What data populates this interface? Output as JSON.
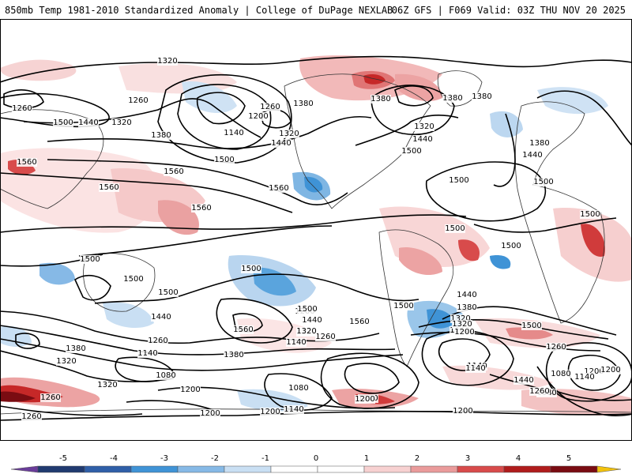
{
  "header": {
    "title": "850mb Temp 1981-2010 Standardized Anomaly | College of DuPage NEXLAB",
    "run_info": "06Z GFS | F069 Valid: 03Z THU NOV 20 2025"
  },
  "colorbar": {
    "ticks": [
      "-5",
      "-4",
      "-3",
      "-2",
      "-1",
      "0",
      "1",
      "2",
      "3",
      "4",
      "5"
    ],
    "colors": [
      "#6a3d9a",
      "#203a70",
      "#2f5fa8",
      "#3f93d6",
      "#86b9e6",
      "#c9dff3",
      "#ffffff",
      "#ffffff",
      "#f7d1d1",
      "#ea9b9b",
      "#d84b4b",
      "#b01c1c",
      "#7a0c12",
      "#f2c20d"
    ]
  },
  "map": {
    "contour_labels": [
      {
        "id": "c1",
        "text": "1320"
      },
      {
        "id": "c2",
        "text": "1260"
      },
      {
        "id": "c3",
        "text": "1260"
      },
      {
        "id": "c4",
        "text": "1500"
      },
      {
        "id": "c5",
        "text": "1440"
      },
      {
        "id": "c6",
        "text": "1320"
      },
      {
        "id": "c7",
        "text": "1200"
      },
      {
        "id": "c8",
        "text": "1140"
      },
      {
        "id": "c9",
        "text": "1260"
      },
      {
        "id": "c10",
        "text": "1380"
      },
      {
        "id": "c11",
        "text": "1320"
      },
      {
        "id": "c12",
        "text": "1440"
      },
      {
        "id": "c13",
        "text": "1380"
      },
      {
        "id": "c14",
        "text": "1380"
      },
      {
        "id": "c15",
        "text": "1380"
      },
      {
        "id": "c16",
        "text": "1380"
      },
      {
        "id": "c17",
        "text": "1320"
      },
      {
        "id": "c18",
        "text": "1440"
      },
      {
        "id": "c19",
        "text": "1500"
      },
      {
        "id": "c20",
        "text": "1380"
      },
      {
        "id": "c21",
        "text": "1440"
      },
      {
        "id": "c22",
        "text": "1560"
      },
      {
        "id": "c23",
        "text": "1560"
      },
      {
        "id": "c24",
        "text": "1500"
      },
      {
        "id": "c25",
        "text": "1560"
      },
      {
        "id": "c26",
        "text": "1560"
      },
      {
        "id": "c27",
        "text": "1500"
      },
      {
        "id": "c28",
        "text": "1500"
      },
      {
        "id": "c29",
        "text": "1560"
      },
      {
        "id": "c30",
        "text": "1500"
      },
      {
        "id": "c31",
        "text": "1500"
      },
      {
        "id": "c32",
        "text": "1500"
      },
      {
        "id": "c33",
        "text": "1500"
      },
      {
        "id": "c34",
        "text": "1500"
      },
      {
        "id": "c35",
        "text": "1500"
      },
      {
        "id": "c36",
        "text": "1500"
      },
      {
        "id": "c37",
        "text": "1440"
      },
      {
        "id": "c38",
        "text": "1380"
      },
      {
        "id": "c39",
        "text": "1320"
      },
      {
        "id": "c40",
        "text": "1260"
      },
      {
        "id": "c41",
        "text": "1200"
      },
      {
        "id": "c42",
        "text": "1140"
      },
      {
        "id": "c43",
        "text": "1440"
      },
      {
        "id": "c44",
        "text": "1560"
      },
      {
        "id": "c45",
        "text": "1380"
      },
      {
        "id": "c46",
        "text": "1260"
      },
      {
        "id": "c47",
        "text": "1140"
      },
      {
        "id": "c48",
        "text": "1200"
      },
      {
        "id": "c49",
        "text": "1080"
      },
      {
        "id": "c50",
        "text": "1320"
      },
      {
        "id": "c51",
        "text": "1200"
      },
      {
        "id": "c52",
        "text": "1500"
      },
      {
        "id": "c53",
        "text": "1560"
      },
      {
        "id": "c54",
        "text": "1440"
      },
      {
        "id": "c55",
        "text": "1320"
      },
      {
        "id": "c56",
        "text": "1260"
      },
      {
        "id": "c57",
        "text": "1140"
      },
      {
        "id": "c58",
        "text": "1080"
      },
      {
        "id": "c59",
        "text": "1200"
      },
      {
        "id": "c60",
        "text": "1200"
      },
      {
        "id": "c61",
        "text": "1140"
      },
      {
        "id": "c62",
        "text": "1440"
      },
      {
        "id": "c63",
        "text": "1380"
      },
      {
        "id": "c64",
        "text": "1320"
      },
      {
        "id": "c65",
        "text": "1260"
      },
      {
        "id": "c66",
        "text": "1200"
      },
      {
        "id": "c67",
        "text": "1140"
      },
      {
        "id": "c68",
        "text": "1500"
      },
      {
        "id": "c69",
        "text": "1200"
      },
      {
        "id": "c70",
        "text": "1080"
      },
      {
        "id": "c71",
        "text": "1140"
      },
      {
        "id": "c72",
        "text": "1200"
      },
      {
        "id": "c73",
        "text": "1260"
      },
      {
        "id": "c74",
        "text": "1260"
      },
      {
        "id": "c75",
        "text": "1200"
      },
      {
        "id": "c76",
        "text": "1200"
      },
      {
        "id": "c77",
        "text": "1260"
      },
      {
        "id": "c78",
        "text": "1500"
      },
      {
        "id": "c79",
        "text": "1380"
      },
      {
        "id": "c80",
        "text": "1320"
      },
      {
        "id": "c81",
        "text": "1320"
      }
    ]
  }
}
